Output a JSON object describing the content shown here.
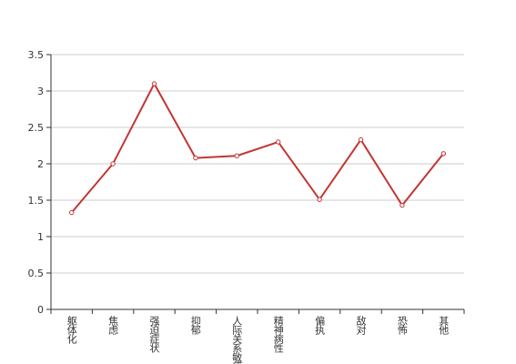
{
  "chart_data": {
    "type": "line",
    "categories": [
      "躯体化",
      "焦虑",
      "强迫症状",
      "抑郁",
      "人际关系敏感",
      "精神病性",
      "偏执",
      "敌对",
      "恐怖",
      "其他"
    ],
    "series": [
      {
        "color": "#c23531",
        "values": [
          1.33,
          2.0,
          3.1,
          2.08,
          2.11,
          2.3,
          1.51,
          2.33,
          1.43,
          2.14
        ]
      }
    ],
    "ylim": [
      0,
      3.5
    ],
    "yticks": [
      0,
      0.5,
      1,
      1.5,
      2,
      2.5,
      3,
      3.5
    ],
    "grid": true
  }
}
